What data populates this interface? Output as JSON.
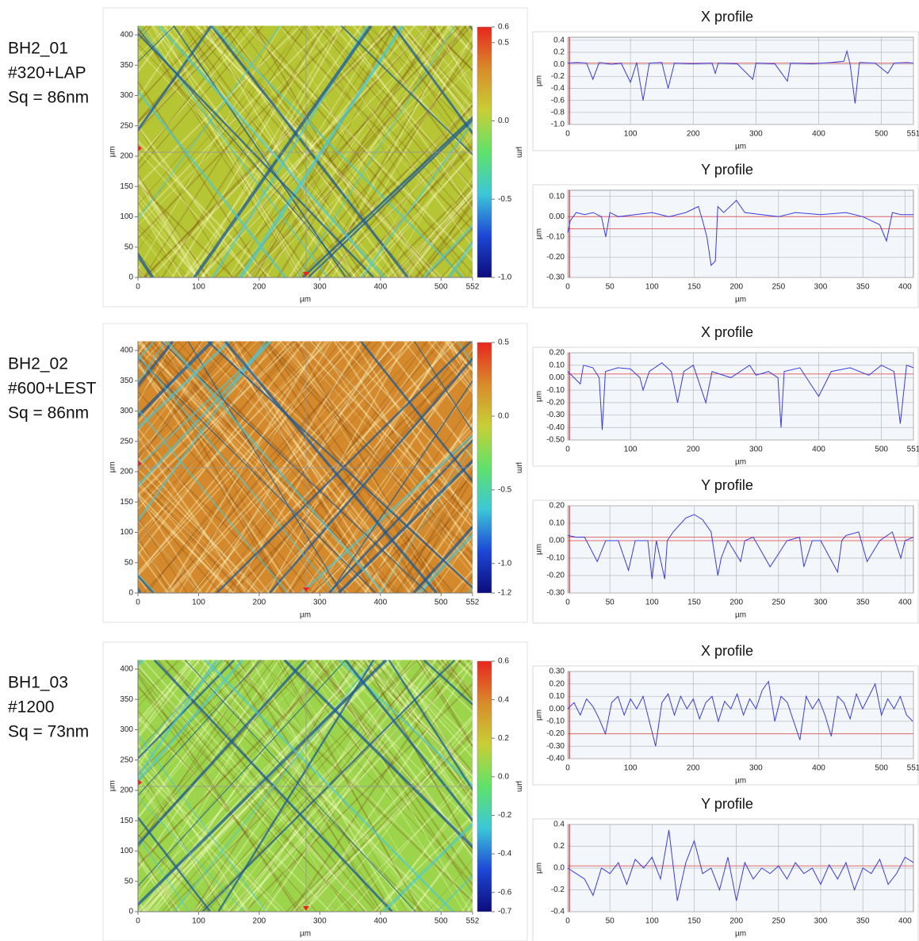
{
  "samples": [
    [
      "BH2_01",
      "#320+LAP",
      "Sq = 86nm"
    ],
    [
      "BH2_02",
      "#600+LEST",
      "Sq = 86nm"
    ],
    [
      "BH1_03",
      "#1200",
      "Sq = 73nm"
    ]
  ],
  "chart_data": [
    {
      "type": "surface",
      "xlabel": "µm",
      "ylabel": "µm",
      "xlim": [
        0,
        552
      ],
      "ylim": [
        0,
        415
      ],
      "xticks": [
        0,
        100,
        200,
        300,
        400,
        500,
        552
      ],
      "yticks": [
        0,
        50,
        100,
        150,
        200,
        250,
        300,
        350,
        400
      ],
      "base_color": "#b5c534",
      "colorbar_label": "µm",
      "clim": [
        -1.0,
        0.6
      ],
      "cticks": [
        0.6,
        0.5,
        {
          "value": 0,
          "label": "0.0"
        },
        -0.5,
        {
          "value": -1.0,
          "label": "-1.0"
        }
      ],
      "colorscale": [
        "#e8261f",
        "#d98b2a",
        "#c8cf35",
        "#5fe26a",
        "#3cc7d8",
        "#1d47d6",
        "#0c0c7a"
      ]
    },
    {
      "type": "line",
      "title": "X profile",
      "xlabel": "µm",
      "ylabel": "µm",
      "xlim": [
        0,
        551
      ],
      "ylim": [
        -1.0,
        0.45
      ],
      "xticks": [
        0,
        100,
        200,
        300,
        400,
        500,
        551
      ],
      "yticks": [
        0.4,
        0.2,
        {
          "value": 0,
          "label": "0.0"
        },
        -0.2,
        -0.4,
        -0.6,
        -0.8,
        {
          "value": -1.0,
          "label": "-1.0"
        }
      ],
      "grid": true,
      "color": "#3b3be0",
      "ref_lines": [
        0.02
      ],
      "ref_color": "#e06a6a",
      "x": [
        0,
        15,
        30,
        40,
        50,
        70,
        85,
        100,
        110,
        120,
        130,
        150,
        160,
        170,
        200,
        230,
        235,
        240,
        270,
        295,
        300,
        330,
        350,
        355,
        390,
        420,
        440,
        445,
        450,
        458,
        465,
        490,
        510,
        520,
        540,
        551
      ],
      "values": [
        0.02,
        0.03,
        0.02,
        -0.25,
        0.03,
        0.0,
        0.02,
        -0.3,
        0.03,
        -0.6,
        0.02,
        0.03,
        -0.4,
        0.02,
        0.01,
        0.02,
        -0.15,
        0.02,
        0.01,
        -0.25,
        0.02,
        0.01,
        -0.28,
        0.02,
        0.01,
        0.03,
        0.05,
        0.22,
        0.0,
        -0.65,
        0.03,
        0.02,
        -0.15,
        0.02,
        0.03,
        0.02
      ]
    },
    {
      "type": "line",
      "title": "Y profile",
      "xlabel": "µm",
      "ylabel": "µm",
      "xlim": [
        0,
        410
      ],
      "ylim": [
        -0.3,
        0.13
      ],
      "xticks": [
        0,
        50,
        100,
        150,
        200,
        250,
        300,
        350,
        400
      ],
      "yticks": [
        {
          "value": 0.1,
          "label": "0.10"
        },
        {
          "value": 0,
          "label": "0.00"
        },
        {
          "value": -0.1,
          "label": "-0.10"
        },
        {
          "value": -0.2,
          "label": "-0.20"
        },
        {
          "value": -0.3,
          "label": "-0.30"
        }
      ],
      "grid": true,
      "color": "#3b3be0",
      "ref_lines": [
        0.0,
        -0.06
      ],
      "ref_color": "#e06a6a",
      "x": [
        0,
        3,
        10,
        20,
        30,
        40,
        45,
        50,
        60,
        80,
        100,
        120,
        140,
        150,
        155,
        160,
        165,
        170,
        175,
        178,
        185,
        200,
        210,
        230,
        250,
        270,
        300,
        330,
        350,
        370,
        378,
        385,
        395,
        410
      ],
      "values": [
        -0.08,
        -0.02,
        0.02,
        0.01,
        0.02,
        0.0,
        -0.1,
        0.02,
        0.0,
        0.01,
        0.02,
        0.0,
        0.02,
        0.04,
        0.05,
        -0.02,
        -0.1,
        -0.24,
        -0.22,
        0.05,
        0.02,
        0.08,
        0.02,
        0.01,
        0.0,
        0.02,
        0.01,
        0.02,
        0.0,
        -0.04,
        -0.12,
        0.02,
        0.01,
        0.01
      ]
    },
    {
      "type": "surface",
      "xlabel": "µm",
      "ylabel": "µm",
      "xlim": [
        0,
        552
      ],
      "ylim": [
        0,
        415
      ],
      "xticks": [
        0,
        100,
        200,
        300,
        400,
        500,
        552
      ],
      "yticks": [
        0,
        50,
        100,
        150,
        200,
        250,
        300,
        350,
        400
      ],
      "base_color": "#d48a2c",
      "colorbar_label": "µm",
      "clim": [
        -1.2,
        0.5
      ],
      "cticks": [
        0.5,
        {
          "value": 0,
          "label": "0.0"
        },
        -0.5,
        {
          "value": -1.0,
          "label": "-1.0"
        },
        -1.2
      ],
      "colorscale": [
        "#e8261f",
        "#d98b2a",
        "#c8cf35",
        "#5fe26a",
        "#3cc7d8",
        "#1d47d6",
        "#0c0c7a"
      ]
    },
    {
      "type": "line",
      "title": "X profile",
      "xlabel": "µm",
      "ylabel": "µm",
      "xlim": [
        0,
        551
      ],
      "ylim": [
        -0.5,
        0.2
      ],
      "xticks": [
        0,
        100,
        200,
        300,
        400,
        500,
        551
      ],
      "yticks": [
        {
          "value": 0.2,
          "label": "0.20"
        },
        {
          "value": 0.1,
          "label": "0.10"
        },
        {
          "value": 0,
          "label": "0.00"
        },
        {
          "value": -0.1,
          "label": "-0.10"
        },
        {
          "value": -0.2,
          "label": "-0.20"
        },
        {
          "value": -0.3,
          "label": "-0.30"
        },
        {
          "value": -0.4,
          "label": "-0.40"
        },
        {
          "value": -0.5,
          "label": "-0.50"
        }
      ],
      "grid": true,
      "color": "#3b3be0",
      "ref_lines": [
        0.03
      ],
      "ref_color": "#e06a6a",
      "x": [
        0,
        10,
        20,
        25,
        40,
        50,
        55,
        60,
        80,
        100,
        115,
        120,
        130,
        150,
        165,
        175,
        185,
        200,
        220,
        230,
        260,
        290,
        300,
        320,
        335,
        340,
        345,
        370,
        400,
        420,
        450,
        480,
        500,
        520,
        530,
        540,
        551
      ],
      "values": [
        0.05,
        0.0,
        -0.05,
        0.1,
        0.08,
        0.0,
        -0.42,
        0.05,
        0.08,
        0.07,
        0.0,
        -0.1,
        0.05,
        0.12,
        0.05,
        -0.2,
        0.05,
        0.1,
        -0.2,
        0.05,
        0.0,
        0.1,
        0.02,
        0.05,
        0.0,
        -0.4,
        0.05,
        0.08,
        -0.15,
        0.05,
        0.08,
        0.02,
        0.1,
        0.05,
        -0.37,
        0.1,
        0.08
      ]
    },
    {
      "type": "line",
      "title": "Y profile",
      "xlabel": "µm",
      "ylabel": "µm",
      "xlim": [
        0,
        410
      ],
      "ylim": [
        -0.3,
        0.2
      ],
      "xticks": [
        0,
        50,
        100,
        150,
        200,
        250,
        300,
        350,
        400
      ],
      "yticks": [
        {
          "value": 0.2,
          "label": "0.20"
        },
        {
          "value": 0.1,
          "label": "0.10"
        },
        {
          "value": 0,
          "label": "0.00"
        },
        {
          "value": -0.1,
          "label": "-0.10"
        },
        {
          "value": -0.2,
          "label": "-0.20"
        },
        {
          "value": -0.3,
          "label": "-0.30"
        }
      ],
      "grid": true,
      "color": "#3b3be0",
      "ref_lines": [
        0.0,
        0.02
      ],
      "ref_color": "#e06a6a",
      "x": [
        0,
        10,
        20,
        35,
        45,
        60,
        72,
        80,
        95,
        100,
        105,
        115,
        118,
        125,
        140,
        150,
        160,
        170,
        178,
        182,
        190,
        205,
        210,
        220,
        240,
        260,
        275,
        280,
        290,
        300,
        320,
        325,
        330,
        345,
        355,
        370,
        385,
        395,
        400,
        410
      ],
      "values": [
        0.03,
        0.02,
        0.02,
        -0.12,
        0.0,
        0.0,
        -0.17,
        0.0,
        0.0,
        -0.22,
        0.0,
        -0.22,
        0.0,
        0.05,
        0.13,
        0.15,
        0.12,
        0.05,
        -0.2,
        -0.1,
        0.0,
        -0.12,
        0.0,
        0.02,
        -0.15,
        0.0,
        0.02,
        -0.15,
        0.0,
        0.0,
        -0.18,
        0.0,
        0.03,
        0.05,
        -0.12,
        0.0,
        0.05,
        -0.1,
        0.0,
        0.02
      ]
    },
    {
      "type": "surface",
      "xlabel": "µm",
      "ylabel": "µm",
      "xlim": [
        0,
        552
      ],
      "ylim": [
        0,
        415
      ],
      "xticks": [
        0,
        100,
        200,
        300,
        400,
        500,
        552
      ],
      "yticks": [
        0,
        50,
        100,
        150,
        200,
        250,
        300,
        350,
        400
      ],
      "base_color": "#9cd54c",
      "colorbar_label": "µm",
      "clim": [
        -0.7,
        0.6
      ],
      "cticks": [
        0.6,
        0.4,
        0.2,
        {
          "value": 0,
          "label": "0.0"
        },
        -0.2,
        -0.4,
        -0.6,
        -0.7
      ],
      "colorscale": [
        "#e8261f",
        "#d98b2a",
        "#c8cf35",
        "#5fe26a",
        "#3cc7d8",
        "#1d47d6",
        "#0c0c7a"
      ]
    },
    {
      "type": "line",
      "title": "X profile",
      "xlabel": "µm",
      "ylabel": "µm",
      "xlim": [
        0,
        551
      ],
      "ylim": [
        -0.4,
        0.3
      ],
      "xticks": [
        0,
        100,
        200,
        300,
        400,
        500,
        551
      ],
      "yticks": [
        {
          "value": 0.3,
          "label": "0.30"
        },
        {
          "value": 0.2,
          "label": "0.20"
        },
        {
          "value": 0.1,
          "label": "0.10"
        },
        {
          "value": 0,
          "label": "0.00"
        },
        {
          "value": -0.1,
          "label": "-0.10"
        },
        {
          "value": -0.2,
          "label": "-0.20"
        },
        {
          "value": -0.3,
          "label": "-0.30"
        },
        {
          "value": -0.4,
          "label": "-0.40"
        }
      ],
      "grid": true,
      "color": "#3b3be0",
      "ref_lines": [
        -0.2
      ],
      "ref_color": "#e06a6a",
      "x": [
        0,
        10,
        20,
        30,
        40,
        50,
        60,
        70,
        80,
        90,
        100,
        110,
        120,
        130,
        140,
        150,
        160,
        170,
        180,
        190,
        200,
        210,
        220,
        230,
        240,
        250,
        260,
        270,
        280,
        290,
        300,
        310,
        320,
        330,
        340,
        350,
        360,
        370,
        380,
        390,
        400,
        410,
        420,
        430,
        440,
        450,
        460,
        470,
        480,
        490,
        500,
        510,
        520,
        530,
        540,
        550
      ],
      "values": [
        0,
        0.05,
        -0.05,
        0.08,
        0.02,
        -0.08,
        -0.2,
        0.05,
        0.1,
        -0.05,
        0.08,
        0.0,
        0.1,
        -0.1,
        -0.3,
        0.05,
        0.12,
        -0.05,
        0.1,
        0.0,
        0.08,
        -0.08,
        0.05,
        0.1,
        -0.1,
        0.06,
        0.0,
        0.12,
        -0.05,
        0.08,
        0.0,
        0.15,
        0.22,
        -0.1,
        0.1,
        0.05,
        -0.1,
        -0.25,
        0.1,
        0.0,
        0.08,
        -0.05,
        -0.22,
        0.1,
        0.05,
        -0.08,
        0.12,
        0.0,
        0.1,
        0.2,
        -0.05,
        0.08,
        0.0,
        0.1,
        -0.05,
        -0.1
      ]
    },
    {
      "type": "line",
      "title": "Y profile",
      "xlabel": "µm",
      "ylabel": "µm",
      "xlim": [
        0,
        410
      ],
      "ylim": [
        -0.4,
        0.4
      ],
      "xticks": [
        0,
        50,
        100,
        150,
        200,
        250,
        300,
        350,
        400
      ],
      "yticks": [
        0.4,
        0.2,
        {
          "value": 0,
          "label": "0.0"
        },
        -0.2,
        -0.4
      ],
      "grid": true,
      "color": "#3b3be0",
      "ref_lines": [
        0.02
      ],
      "ref_color": "#e06a6a",
      "x": [
        0,
        10,
        20,
        30,
        40,
        50,
        60,
        70,
        80,
        90,
        100,
        110,
        120,
        130,
        140,
        150,
        160,
        170,
        180,
        190,
        200,
        210,
        220,
        230,
        240,
        250,
        260,
        270,
        280,
        290,
        300,
        310,
        320,
        330,
        340,
        350,
        360,
        370,
        380,
        390,
        400,
        410
      ],
      "values": [
        0.0,
        -0.05,
        -0.1,
        -0.25,
        0.0,
        -0.05,
        0.05,
        -0.15,
        0.08,
        0.0,
        0.1,
        -0.1,
        0.35,
        -0.3,
        0.05,
        0.25,
        -0.05,
        0.0,
        -0.2,
        0.1,
        -0.3,
        0.05,
        -0.1,
        0.0,
        -0.05,
        0.02,
        -0.1,
        0.05,
        -0.05,
        0.0,
        -0.15,
        0.03,
        -0.1,
        0.05,
        -0.2,
        0.0,
        -0.05,
        0.08,
        -0.15,
        -0.05,
        0.1,
        0.05
      ]
    }
  ]
}
